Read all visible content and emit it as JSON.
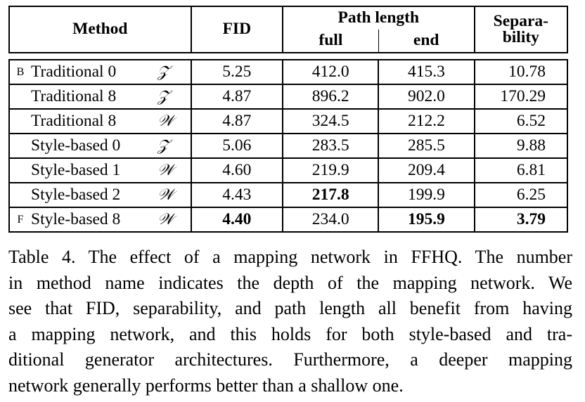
{
  "table": {
    "headers": {
      "method": "Method",
      "fid": "FID",
      "path_length": "Path length",
      "full": "full",
      "end": "end",
      "separability_1": "Separa-",
      "separability_2": "bility"
    },
    "rows": [
      {
        "config": "B",
        "method": "Traditional 0",
        "latent": "𝒵",
        "fid": "5.25",
        "full": "412.0",
        "end": "415.3",
        "sep": "10.78"
      },
      {
        "config": "",
        "method": "Traditional 8",
        "latent": "𝒵",
        "fid": "4.87",
        "full": "896.2",
        "end": "902.0",
        "sep": "170.29"
      },
      {
        "config": "",
        "method": "Traditional 8",
        "latent": "𝒲",
        "fid": "4.87",
        "full": "324.5",
        "end": "212.2",
        "sep": "6.52"
      },
      {
        "config": "",
        "method": "Style-based 0",
        "latent": "𝒵",
        "fid": "5.06",
        "full": "283.5",
        "end": "285.5",
        "sep": "9.88"
      },
      {
        "config": "",
        "method": "Style-based 1",
        "latent": "𝒲",
        "fid": "4.60",
        "full": "219.9",
        "end": "209.4",
        "sep": "6.81"
      },
      {
        "config": "",
        "method": "Style-based 2",
        "latent": "𝒲",
        "fid": "4.43",
        "full": "217.8",
        "end": "199.9",
        "sep": "6.25"
      },
      {
        "config": "F",
        "method": "Style-based 8",
        "latent": "𝒲",
        "fid": "4.40",
        "full": "234.0",
        "end": "195.9",
        "sep": "3.79"
      }
    ]
  },
  "caption": {
    "lines": [
      "Table 4. The effect of a mapping network in FFHQ. The number",
      "in method name indicates the depth of the mapping network. We",
      "see that FID, separability, and path length all benefit from having",
      "a mapping network, and this holds for both style-based and tra-",
      "ditional generator architectures. Furthermore, a deeper mapping",
      "network generally performs better than a shallow one."
    ]
  }
}
